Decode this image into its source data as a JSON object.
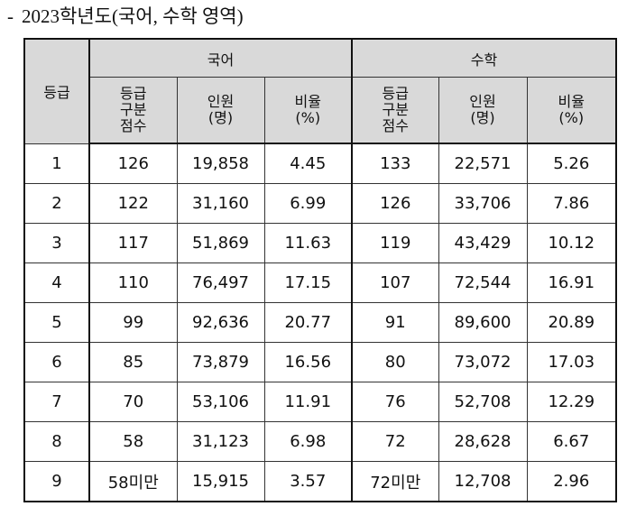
{
  "title": {
    "dash": "-",
    "text": "2023학년도(국어, 수학 영역)"
  },
  "table": {
    "grade_header": "등급",
    "groups": [
      "국어",
      "수학"
    ],
    "sub_headers": [
      [
        "등급",
        "구분",
        "점수"
      ],
      [
        "인원",
        "(명)"
      ],
      [
        "비율",
        "(%)"
      ]
    ],
    "rows": [
      {
        "grade": "1",
        "kor": [
          "126",
          "19,858",
          "4.45"
        ],
        "math": [
          "133",
          "22,571",
          "5.26"
        ]
      },
      {
        "grade": "2",
        "kor": [
          "122",
          "31,160",
          "6.99"
        ],
        "math": [
          "126",
          "33,706",
          "7.86"
        ]
      },
      {
        "grade": "3",
        "kor": [
          "117",
          "51,869",
          "11.63"
        ],
        "math": [
          "119",
          "43,429",
          "10.12"
        ]
      },
      {
        "grade": "4",
        "kor": [
          "110",
          "76,497",
          "17.15"
        ],
        "math": [
          "107",
          "72,544",
          "16.91"
        ]
      },
      {
        "grade": "5",
        "kor": [
          "99",
          "92,636",
          "20.77"
        ],
        "math": [
          "91",
          "89,600",
          "20.89"
        ]
      },
      {
        "grade": "6",
        "kor": [
          "85",
          "73,879",
          "16.56"
        ],
        "math": [
          "80",
          "73,072",
          "17.03"
        ]
      },
      {
        "grade": "7",
        "kor": [
          "70",
          "53,106",
          "11.91"
        ],
        "math": [
          "76",
          "52,708",
          "12.29"
        ]
      },
      {
        "grade": "8",
        "kor": [
          "58",
          "31,123",
          "6.98"
        ],
        "math": [
          "72",
          "28,628",
          "6.67"
        ]
      },
      {
        "grade": "9",
        "kor": [
          "58미만",
          "15,915",
          "3.57"
        ],
        "math": [
          "72미만",
          "12,708",
          "2.96"
        ]
      }
    ]
  }
}
